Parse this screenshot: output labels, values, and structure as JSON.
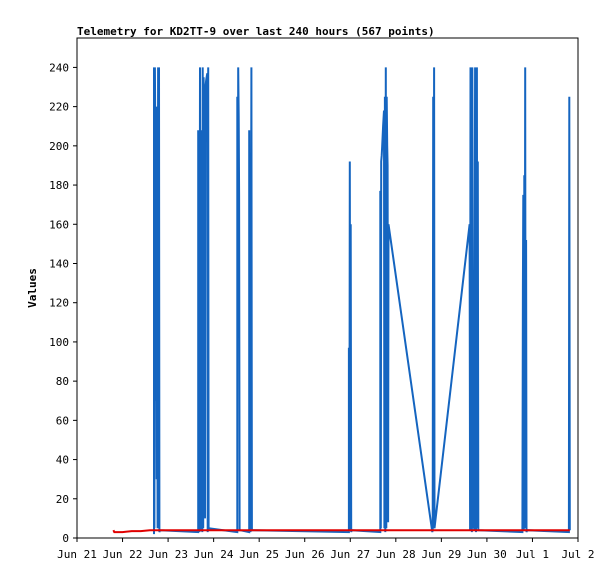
{
  "chart_data": {
    "type": "line",
    "title": "Telemetry for KD2TT-9 over last 240 hours (567 points)",
    "xlabel": "",
    "ylabel": "Values",
    "ylim": [
      0,
      255
    ],
    "yticks": [
      0,
      20,
      40,
      60,
      80,
      100,
      120,
      140,
      160,
      180,
      200,
      220,
      240
    ],
    "xlim_days": [
      0,
      11
    ],
    "xticks": [
      {
        "label": "Jun 21",
        "day": 0
      },
      {
        "label": "Jun 22",
        "day": 1
      },
      {
        "label": "Jun 23",
        "day": 2
      },
      {
        "label": "Jun 24",
        "day": 3
      },
      {
        "label": "Jun 25",
        "day": 4
      },
      {
        "label": "Jun 26",
        "day": 5
      },
      {
        "label": "Jun 27",
        "day": 6
      },
      {
        "label": "Jun 28",
        "day": 7
      },
      {
        "label": "Jun 29",
        "day": 8
      },
      {
        "label": "Jun 30",
        "day": 9
      },
      {
        "label": "Jul 1",
        "day": 10
      },
      {
        "label": "Jul 2",
        "day": 11
      }
    ],
    "grid": false,
    "series": [
      {
        "color": "#1565c0",
        "points": [
          [
            1.69,
            2
          ],
          [
            1.69,
            240
          ],
          [
            1.7,
            5
          ],
          [
            1.71,
            240
          ],
          [
            1.72,
            205
          ],
          [
            1.73,
            70
          ],
          [
            1.74,
            220
          ],
          [
            1.75,
            30
          ],
          [
            1.76,
            135
          ],
          [
            1.77,
            5
          ],
          [
            1.78,
            240
          ],
          [
            1.79,
            10
          ],
          [
            1.8,
            240
          ],
          [
            1.81,
            3
          ],
          [
            1.82,
            4
          ],
          [
            1.83,
            4
          ],
          [
            2.66,
            3
          ],
          [
            2.66,
            208
          ],
          [
            2.67,
            5
          ],
          [
            2.68,
            208
          ],
          [
            2.69,
            3
          ],
          [
            2.7,
            240
          ],
          [
            2.71,
            4
          ],
          [
            2.72,
            192
          ],
          [
            2.73,
            5
          ],
          [
            2.74,
            208
          ],
          [
            2.75,
            3
          ],
          [
            2.76,
            240
          ],
          [
            2.77,
            5
          ],
          [
            2.78,
            235
          ],
          [
            2.79,
            200
          ],
          [
            2.8,
            225
          ],
          [
            2.81,
            10
          ],
          [
            2.82,
            230
          ],
          [
            2.84,
            234
          ],
          [
            2.86,
            237
          ],
          [
            2.87,
            3
          ],
          [
            2.88,
            240
          ],
          [
            2.89,
            5
          ],
          [
            3.52,
            3
          ],
          [
            3.52,
            225
          ],
          [
            3.53,
            105
          ],
          [
            3.54,
            240
          ],
          [
            3.55,
            215
          ],
          [
            3.56,
            175
          ],
          [
            3.57,
            4
          ],
          [
            3.58,
            4
          ],
          [
            3.78,
            3
          ],
          [
            3.78,
            208
          ],
          [
            3.79,
            5
          ],
          [
            3.8,
            192
          ],
          [
            3.81,
            3
          ],
          [
            3.83,
            240
          ],
          [
            3.84,
            4
          ],
          [
            3.85,
            4
          ],
          [
            5.97,
            3
          ],
          [
            5.97,
            97
          ],
          [
            5.98,
            4
          ],
          [
            5.99,
            192
          ],
          [
            6.0,
            5
          ],
          [
            6.01,
            160
          ],
          [
            6.02,
            3
          ],
          [
            6.03,
            4
          ],
          [
            6.66,
            3
          ],
          [
            6.66,
            177
          ],
          [
            6.67,
            5
          ],
          [
            6.68,
            192
          ],
          [
            6.69,
            195
          ],
          [
            6.7,
            200
          ],
          [
            6.72,
            210
          ],
          [
            6.74,
            218
          ],
          [
            6.75,
            5
          ],
          [
            6.76,
            225
          ],
          [
            6.77,
            3
          ],
          [
            6.78,
            240
          ],
          [
            6.79,
            5
          ],
          [
            6.8,
            225
          ],
          [
            6.81,
            200
          ],
          [
            6.82,
            190
          ],
          [
            6.83,
            8
          ],
          [
            6.84,
            160
          ],
          [
            7.8,
            3
          ],
          [
            7.81,
            4
          ],
          [
            7.82,
            225
          ],
          [
            7.83,
            5
          ],
          [
            7.84,
            240
          ],
          [
            7.85,
            5
          ],
          [
            8.62,
            160
          ],
          [
            8.63,
            4
          ],
          [
            8.64,
            240
          ],
          [
            8.65,
            5
          ],
          [
            8.66,
            240
          ],
          [
            8.67,
            3
          ],
          [
            8.68,
            240
          ],
          [
            8.7,
            5
          ],
          [
            8.71,
            120
          ],
          [
            8.72,
            4
          ],
          [
            8.74,
            240
          ],
          [
            8.75,
            55
          ],
          [
            8.76,
            3
          ],
          [
            8.78,
            240
          ],
          [
            8.79,
            5
          ],
          [
            8.8,
            192
          ],
          [
            8.81,
            4
          ],
          [
            8.82,
            4
          ],
          [
            9.78,
            3
          ],
          [
            9.79,
            128
          ],
          [
            9.8,
            175
          ],
          [
            9.81,
            4
          ],
          [
            9.82,
            185
          ],
          [
            9.83,
            40
          ],
          [
            9.84,
            240
          ],
          [
            9.85,
            5
          ],
          [
            9.86,
            152
          ],
          [
            9.87,
            3
          ],
          [
            9.88,
            4
          ],
          [
            10.8,
            3
          ],
          [
            10.81,
            225
          ],
          [
            10.82,
            4
          ]
        ]
      },
      {
        "color": "#e00000",
        "points": [
          [
            0.8,
            4
          ],
          [
            0.82,
            3
          ],
          [
            1.0,
            3
          ],
          [
            1.2,
            3.5
          ],
          [
            1.4,
            3.5
          ],
          [
            1.6,
            4
          ],
          [
            2.0,
            4
          ],
          [
            3.0,
            4
          ],
          [
            4.0,
            4
          ],
          [
            5.0,
            4
          ],
          [
            6.0,
            4
          ],
          [
            7.0,
            4
          ],
          [
            8.0,
            4
          ],
          [
            9.0,
            4
          ],
          [
            10.0,
            4
          ],
          [
            10.82,
            4
          ]
        ]
      }
    ]
  }
}
